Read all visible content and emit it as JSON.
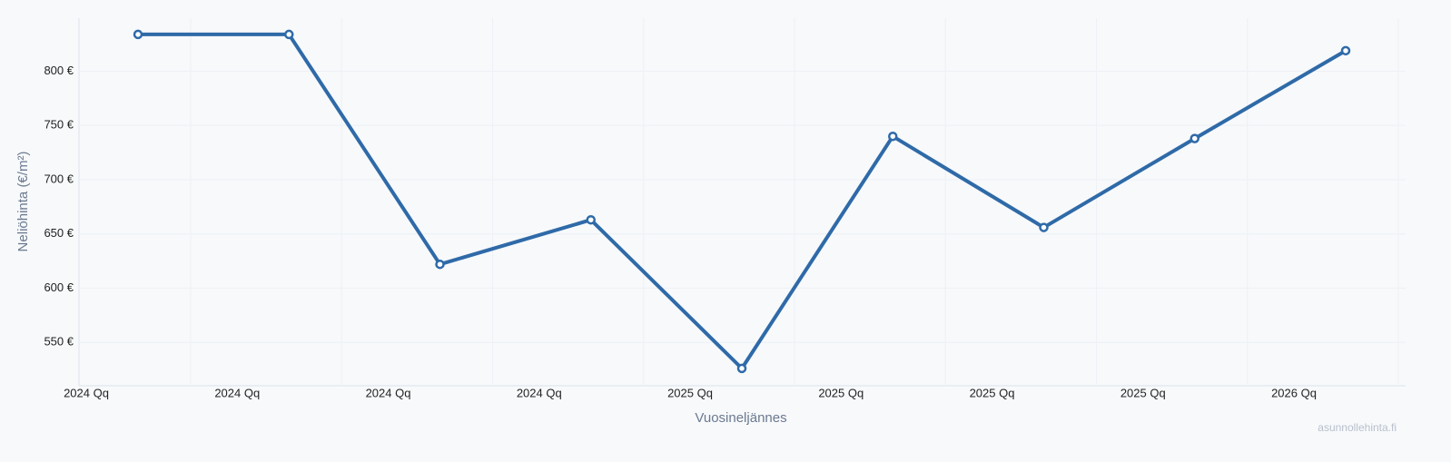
{
  "chart_data": {
    "type": "line",
    "y_label": "Neliöhinta (€/m²)",
    "x_label": "Vuosineljännes",
    "watermark": "asunnollehinta.fi",
    "categories": [
      "2024 Qq",
      "2024 Qq",
      "2024 Qq",
      "2024 Qq",
      "2025 Qq",
      "2025 Qq",
      "2025 Qq",
      "2025 Qq",
      "2026 Qq"
    ],
    "series": [
      {
        "name": "Neliöhinta",
        "color": "#2f6aa8",
        "values": [
          834,
          834,
          622,
          663,
          526,
          740,
          656,
          738,
          819
        ]
      }
    ],
    "ylim": [
      510,
      849
    ],
    "yticks": [
      {
        "value": 550,
        "label": "550 €"
      },
      {
        "value": 600,
        "label": "600 €"
      },
      {
        "value": 650,
        "label": "650 €"
      },
      {
        "value": 700,
        "label": "700 €"
      },
      {
        "value": 750,
        "label": "750 €"
      },
      {
        "value": 800,
        "label": "800 €"
      }
    ],
    "grid": true
  }
}
